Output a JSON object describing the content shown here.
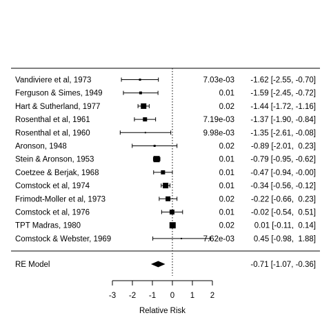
{
  "chart_data": {
    "type": "forest",
    "xlabel": "Relative Risk",
    "xlim": [
      -3,
      2
    ],
    "ticks": [
      -3,
      -2,
      -1,
      0,
      1,
      2
    ],
    "tick_labels": [
      "-3",
      "-2",
      "-1",
      "0",
      "1",
      "2"
    ],
    "reference_line": 0,
    "studies": [
      {
        "label": "Vandiviere et al, 1973",
        "est": -1.62,
        "lo": -2.55,
        "hi": -0.7,
        "weight": "7.03e-03",
        "ci_text": "-1.62 [-2.55, -0.70]",
        "box": 3
      },
      {
        "label": "Ferguson & Simes, 1949",
        "est": -1.59,
        "lo": -2.45,
        "hi": -0.72,
        "weight": "0.01",
        "ci_text": "-1.59 [-2.45, -0.72]",
        "box": 4
      },
      {
        "label": "Hart & Sutherland, 1977",
        "est": -1.44,
        "lo": -1.72,
        "hi": -1.16,
        "weight": "0.02",
        "ci_text": "-1.44 [-1.72, -1.16]",
        "box": 8
      },
      {
        "label": "Rosenthal et al, 1961",
        "est": -1.37,
        "lo": -1.9,
        "hi": -0.84,
        "weight": "7.19e-03",
        "ci_text": "-1.37 [-1.90, -0.84]",
        "box": 6
      },
      {
        "label": "Rosenthal et al, 1960",
        "est": -1.35,
        "lo": -2.61,
        "hi": -0.08,
        "weight": "9.98e-03",
        "ci_text": "-1.35 [-2.61, -0.08]",
        "box": 2
      },
      {
        "label": "Aronson, 1948",
        "est": -0.89,
        "lo": -2.01,
        "hi": 0.23,
        "weight": "0.02",
        "ci_text": "-0.89 [-2.01,  0.23]",
        "box": 3
      },
      {
        "label": "Stein & Aronson, 1953",
        "est": -0.79,
        "lo": -0.95,
        "hi": -0.62,
        "weight": "0.01",
        "ci_text": "-0.79 [-0.95, -0.62]",
        "box": 9
      },
      {
        "label": "Coetzee & Berjak, 1968",
        "est": -0.47,
        "lo": -0.94,
        "hi": -0.0,
        "weight": "0.01",
        "ci_text": "-0.47 [-0.94, -0.00]",
        "box": 6
      },
      {
        "label": "Comstock et al, 1974",
        "est": -0.34,
        "lo": -0.56,
        "hi": -0.12,
        "weight": "0.01",
        "ci_text": "-0.34 [-0.56, -0.12]",
        "box": 8
      },
      {
        "label": "Frimodt-Moller et al, 1973",
        "est": -0.22,
        "lo": -0.66,
        "hi": 0.23,
        "weight": "0.02",
        "ci_text": "-0.22 [-0.66,  0.23]",
        "box": 7
      },
      {
        "label": "Comstock et al, 1976",
        "est": -0.02,
        "lo": -0.54,
        "hi": 0.51,
        "weight": "0.01",
        "ci_text": "-0.02 [-0.54,  0.51]",
        "box": 7
      },
      {
        "label": "TPT Madras, 1980",
        "est": 0.01,
        "lo": -0.11,
        "hi": 0.14,
        "weight": "0.02",
        "ci_text": "0.01 [-0.11,  0.14]",
        "box": 9
      },
      {
        "label": "Comstock & Webster, 1969",
        "est": 0.45,
        "lo": -0.98,
        "hi": 1.88,
        "weight": "7.62e-03",
        "ci_text": "0.45 [-0.98,  1.88]",
        "box": 2
      }
    ],
    "summary": {
      "label": "RE Model",
      "est": -0.71,
      "lo": -1.07,
      "hi": -0.36,
      "ci_text": "-0.71 [-1.07, -0.36]"
    }
  }
}
